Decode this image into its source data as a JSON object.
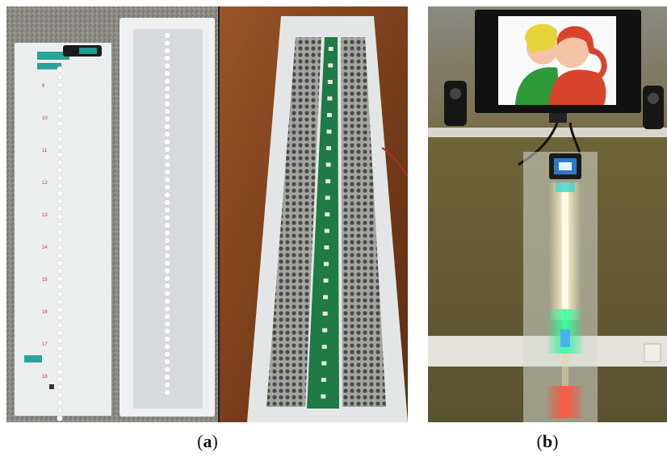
{
  "panels": [
    {
      "id": "a",
      "caption_open": "(",
      "caption_letter": "a",
      "caption_close": ")",
      "strip_numbers": [
        "9",
        "10",
        "11",
        "12",
        "13",
        "14",
        "15",
        "16",
        "17",
        "18"
      ]
    },
    {
      "id": "b",
      "caption_open": "(",
      "caption_letter": "b",
      "caption_close": ")"
    }
  ],
  "colors": {
    "granite_surface": "#8c8985",
    "wood_table": "#8a4a22",
    "acrylic_white": "#eceff0",
    "pcb_green": "#1f7a45",
    "perforated_metal": "#9a9a96",
    "wall_olive": "#6e6438",
    "led_warm_white": "#fff4c2",
    "led_green": "#20e08a",
    "led_red": "#ff4030",
    "number_red": "#c0392b"
  }
}
